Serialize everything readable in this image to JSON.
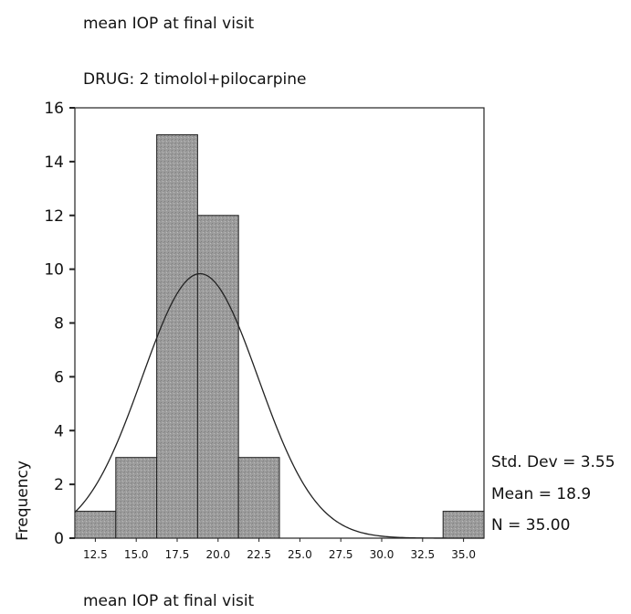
{
  "page": {
    "title": "mean IOP at final visit",
    "subtitle": "DRUG:  2   timolol+pilocarpine"
  },
  "chart_data": {
    "type": "bar",
    "histogram": true,
    "title": "mean IOP at final visit",
    "subtitle": "DRUG:  2   timolol+pilocarpine",
    "xlabel": "mean IOP at final visit",
    "ylabel": "Frequency",
    "categories": [
      "12.5",
      "15.0",
      "17.5",
      "20.0",
      "22.5",
      "25.0",
      "27.5",
      "30.0",
      "32.5",
      "35.0"
    ],
    "values": [
      1,
      3,
      15,
      12,
      3,
      0,
      0,
      0,
      0,
      1
    ],
    "bin_width": 2.5,
    "xlim": [
      11.25,
      36.25
    ],
    "ylim": [
      0,
      16
    ],
    "yticks": [
      0,
      2,
      4,
      6,
      8,
      10,
      12,
      14,
      16
    ],
    "normal_curve": {
      "mean": 18.9,
      "std_dev": 3.55,
      "n": 35
    },
    "stats": [
      "Std. Dev = 3.55",
      "Mean = 18.9",
      "N = 35.00"
    ],
    "bar_color": "#9a9a9a",
    "grid": false,
    "legend": "right"
  }
}
